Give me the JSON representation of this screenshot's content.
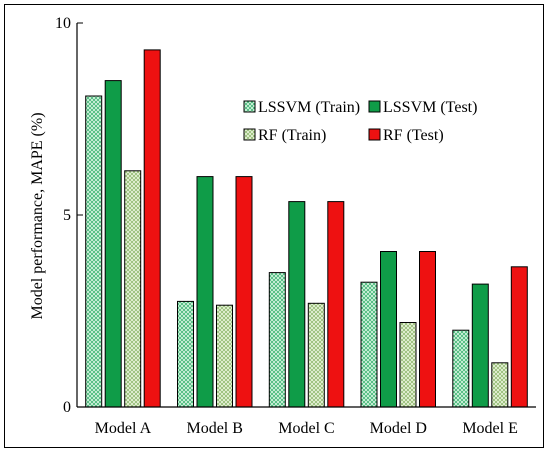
{
  "chart_data": {
    "type": "bar",
    "title": "",
    "xlabel": "",
    "ylabel": "Model performance, MAPE (%)",
    "ylim": [
      0,
      10
    ],
    "yticks": [
      0,
      5,
      10
    ],
    "categories": [
      "Model A",
      "Model B",
      "Model C",
      "Model D",
      "Model E"
    ],
    "grid": false,
    "legend_position": "top-right",
    "series": [
      {
        "name": "LSSVM (Train)",
        "values": [
          8.1,
          2.75,
          3.5,
          3.25,
          2.0
        ],
        "color": "#3cb371",
        "pattern": "crosshatch"
      },
      {
        "name": "LSSVM (Test)",
        "values": [
          8.5,
          6.0,
          5.35,
          4.05,
          3.2
        ],
        "color": "#0f9c48",
        "pattern": "solid"
      },
      {
        "name": "RF (Train)",
        "values": [
          6.15,
          2.65,
          2.7,
          2.2,
          1.15
        ],
        "color": "#a6c98a",
        "pattern": "crosshatch"
      },
      {
        "name": "RF (Test)",
        "values": [
          9.3,
          6.0,
          5.35,
          4.05,
          3.65
        ],
        "color": "#ee1111",
        "pattern": "solid"
      }
    ]
  }
}
